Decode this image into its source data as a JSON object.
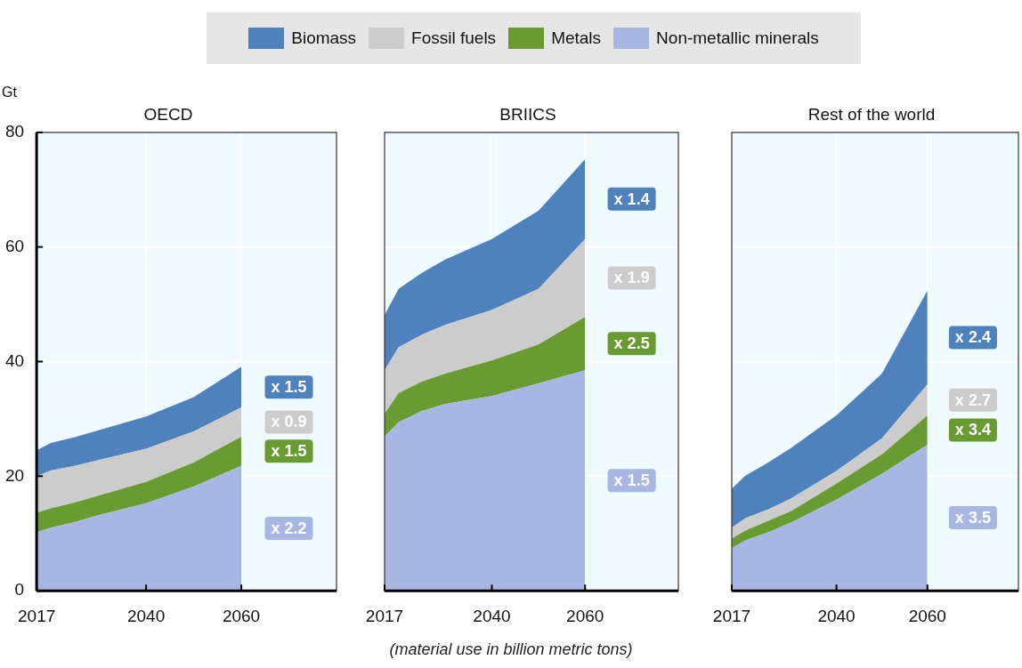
{
  "chart_data": [
    {
      "type": "area",
      "title": "OECD",
      "ylabel": "Gt",
      "x": [
        2017,
        2020,
        2025,
        2030,
        2040,
        2050,
        2060
      ],
      "xlim": [
        2017,
        2080
      ],
      "xticks": [
        2017,
        2040,
        2060
      ],
      "ylim": [
        0,
        80
      ],
      "yticks": [
        0,
        20,
        40,
        60,
        80
      ],
      "stacked": true,
      "grid": true,
      "legend": "top",
      "series": [
        {
          "name": "Non-metallic minerals",
          "color": "#a6b8e2",
          "values": [
            10.2,
            11.0,
            12.0,
            13.2,
            15.3,
            18.2,
            21.8
          ]
        },
        {
          "name": "Metals",
          "color": "#6a9a32",
          "values": [
            3.4,
            3.4,
            3.4,
            3.4,
            3.7,
            4.2,
            5.1
          ]
        },
        {
          "name": "Fossil fuels",
          "color": "#cccccc",
          "values": [
            6.4,
            6.6,
            6.4,
            6.2,
            5.8,
            5.4,
            5.1
          ]
        },
        {
          "name": "Biomass",
          "color": "#4f81bd",
          "values": [
            4.5,
            4.8,
            5.0,
            5.2,
            5.6,
            6.0,
            7.1
          ]
        }
      ],
      "annotations": [
        "x 1.5",
        "x 0.9",
        "x 1.5",
        "x 2.2"
      ]
    },
    {
      "type": "area",
      "title": "BRIICS",
      "x": [
        2017,
        2020,
        2025,
        2030,
        2040,
        2050,
        2060
      ],
      "xlim": [
        2017,
        2080
      ],
      "xticks": [
        2017,
        2040,
        2060
      ],
      "ylim": [
        0,
        80
      ],
      "yticks": [
        0,
        20,
        40,
        60,
        80
      ],
      "stacked": true,
      "grid": true,
      "tick_labels": "x",
      "series": [
        {
          "color": "#a6b8e2",
          "values": [
            26.9,
            29.4,
            31.4,
            32.6,
            34.0,
            36.2,
            38.5
          ]
        },
        {
          "color": "#6a9a32",
          "values": [
            4.0,
            5.1,
            5.1,
            5.3,
            6.2,
            6.8,
            9.3
          ]
        },
        {
          "color": "#cccccc",
          "values": [
            7.6,
            8.0,
            8.2,
            8.5,
            8.8,
            9.7,
            13.6
          ]
        },
        {
          "color": "#4f81bd",
          "values": [
            9.6,
            10.2,
            10.8,
            11.4,
            12.4,
            13.6,
            13.9
          ]
        }
      ],
      "annotations": [
        "x 1.4",
        "x 1.9",
        "x 2.5",
        "x 1.5",
        "(material use in billion metric tons)"
      ]
    },
    {
      "type": "area",
      "title": "Rest of the world",
      "x": [
        2017,
        2020,
        2025,
        2030,
        2040,
        2050,
        2060
      ],
      "xlim": [
        2017,
        2080
      ],
      "xticks": [
        2017,
        2040,
        2060
      ],
      "ylim": [
        0,
        80
      ],
      "yticks": [
        0,
        20,
        40,
        60,
        80
      ],
      "stacked": true,
      "grid": true,
      "tick_labels": "x",
      "series": [
        {
          "color": "#a6b8e2",
          "values": [
            7.4,
            8.8,
            10.2,
            11.9,
            15.9,
            20.4,
            25.5
          ]
        },
        {
          "color": "#6a9a32",
          "values": [
            1.7,
            1.7,
            2.0,
            2.0,
            2.8,
            3.4,
            5.1
          ]
        },
        {
          "color": "#cccccc",
          "values": [
            1.9,
            2.2,
            2.0,
            2.2,
            2.2,
            2.8,
            5.4
          ]
        },
        {
          "color": "#4f81bd",
          "values": [
            6.8,
            7.4,
            8.2,
            8.8,
            9.7,
            11.3,
            16.4
          ]
        }
      ],
      "annotations": [
        "x 2.4",
        "x 2.7",
        "x 3.4",
        "x 3.5"
      ]
    }
  ]
}
